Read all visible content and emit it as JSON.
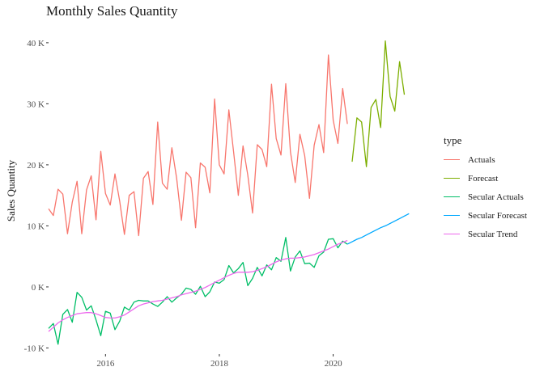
{
  "chart_data": {
    "type": "line",
    "title": "Monthly Sales Quantity",
    "xlabel": "",
    "ylabel": "Sales Quantity",
    "xlim": [
      2015.0,
      2021.4
    ],
    "ylim": [
      -11000,
      42500
    ],
    "x_ticks": [
      {
        "value": 2016,
        "label": "2016"
      },
      {
        "value": 2018,
        "label": "2018"
      },
      {
        "value": 2020,
        "label": "2020"
      }
    ],
    "y_ticks": [
      {
        "value": -10000,
        "label": "-10 K"
      },
      {
        "value": 0,
        "label": "0 K"
      },
      {
        "value": 10000,
        "label": "10 K"
      },
      {
        "value": 20000,
        "label": "20 K"
      },
      {
        "value": 30000,
        "label": "30 K"
      },
      {
        "value": 40000,
        "label": "40 K"
      }
    ],
    "grid": false,
    "legend": {
      "title": "type",
      "position": "right"
    },
    "series": [
      {
        "name": "Actuals",
        "color": "#F8766D",
        "start": "2015-01",
        "step": "month",
        "values": [
          12800,
          11700,
          16000,
          15200,
          8700,
          13900,
          17300,
          8700,
          15900,
          18200,
          11000,
          22200,
          15300,
          13400,
          18500,
          14000,
          8600,
          15000,
          15600,
          8400,
          17800,
          18900,
          13500,
          27000,
          17000,
          16000,
          22800,
          17800,
          10900,
          18800,
          17900,
          9700,
          20300,
          19600,
          15400,
          30800,
          20000,
          18500,
          29000,
          22200,
          15000,
          23100,
          18300,
          12100,
          23300,
          22500,
          19700,
          33200,
          24300,
          21600,
          33300,
          22100,
          17100,
          25000,
          21500,
          14500,
          23200,
          26600,
          22000,
          38000,
          27300,
          23500,
          32500,
          26700
        ]
      },
      {
        "name": "Forecast",
        "color": "#7CAE00",
        "start": "2020-05",
        "step": "month",
        "values": [
          20500,
          27700,
          27000,
          19700,
          29400,
          30700,
          26100,
          40300,
          31200,
          28800,
          36900,
          31500
        ]
      },
      {
        "name": "Secular Actuals",
        "color": "#00BE67",
        "start": "2015-01",
        "step": "month",
        "values": [
          -6800,
          -6000,
          -9400,
          -4500,
          -3700,
          -5800,
          -900,
          -1700,
          -3800,
          -3100,
          -5400,
          -8000,
          -4000,
          -4300,
          -7000,
          -5600,
          -3300,
          -3800,
          -2500,
          -2200,
          -2300,
          -2300,
          -2800,
          -3200,
          -2500,
          -1600,
          -2500,
          -1800,
          -1200,
          -200,
          -400,
          -1200,
          100,
          -1600,
          -800,
          800,
          600,
          1200,
          3500,
          2300,
          3000,
          4000,
          200,
          1400,
          3200,
          1800,
          3600,
          2800,
          4800,
          4200,
          8100,
          2600,
          4900,
          5900,
          3800,
          3900,
          3200,
          5100,
          5700,
          7800,
          7900,
          6400,
          7500,
          7000
        ]
      },
      {
        "name": "Secular Forecast",
        "color": "#00A9FF",
        "start": "2020-04",
        "step": "month",
        "values": [
          7000,
          7400,
          7800,
          8100,
          8500,
          8900,
          9300,
          9700,
          10000,
          10400,
          10800,
          11200,
          11600,
          12000
        ]
      },
      {
        "name": "Secular Trend",
        "color": "#ED68ED",
        "start": "2015-01",
        "step": "month",
        "values": [
          -7300,
          -6600,
          -5900,
          -5400,
          -5000,
          -4700,
          -4400,
          -4300,
          -4200,
          -4200,
          -4400,
          -4700,
          -5000,
          -5100,
          -5100,
          -4900,
          -4600,
          -4100,
          -3600,
          -3100,
          -2800,
          -2600,
          -2400,
          -2300,
          -2200,
          -2000,
          -1800,
          -1600,
          -1300,
          -1100,
          -900,
          -700,
          -400,
          -100,
          300,
          700,
          1100,
          1500,
          1900,
          2200,
          2400,
          2400,
          2400,
          2500,
          2700,
          3000,
          3300,
          3700,
          4100,
          4400,
          4600,
          4700,
          4700,
          4800,
          4900,
          5100,
          5300,
          5600,
          5900,
          6200,
          6600,
          7000,
          7300,
          7600
        ]
      }
    ]
  }
}
